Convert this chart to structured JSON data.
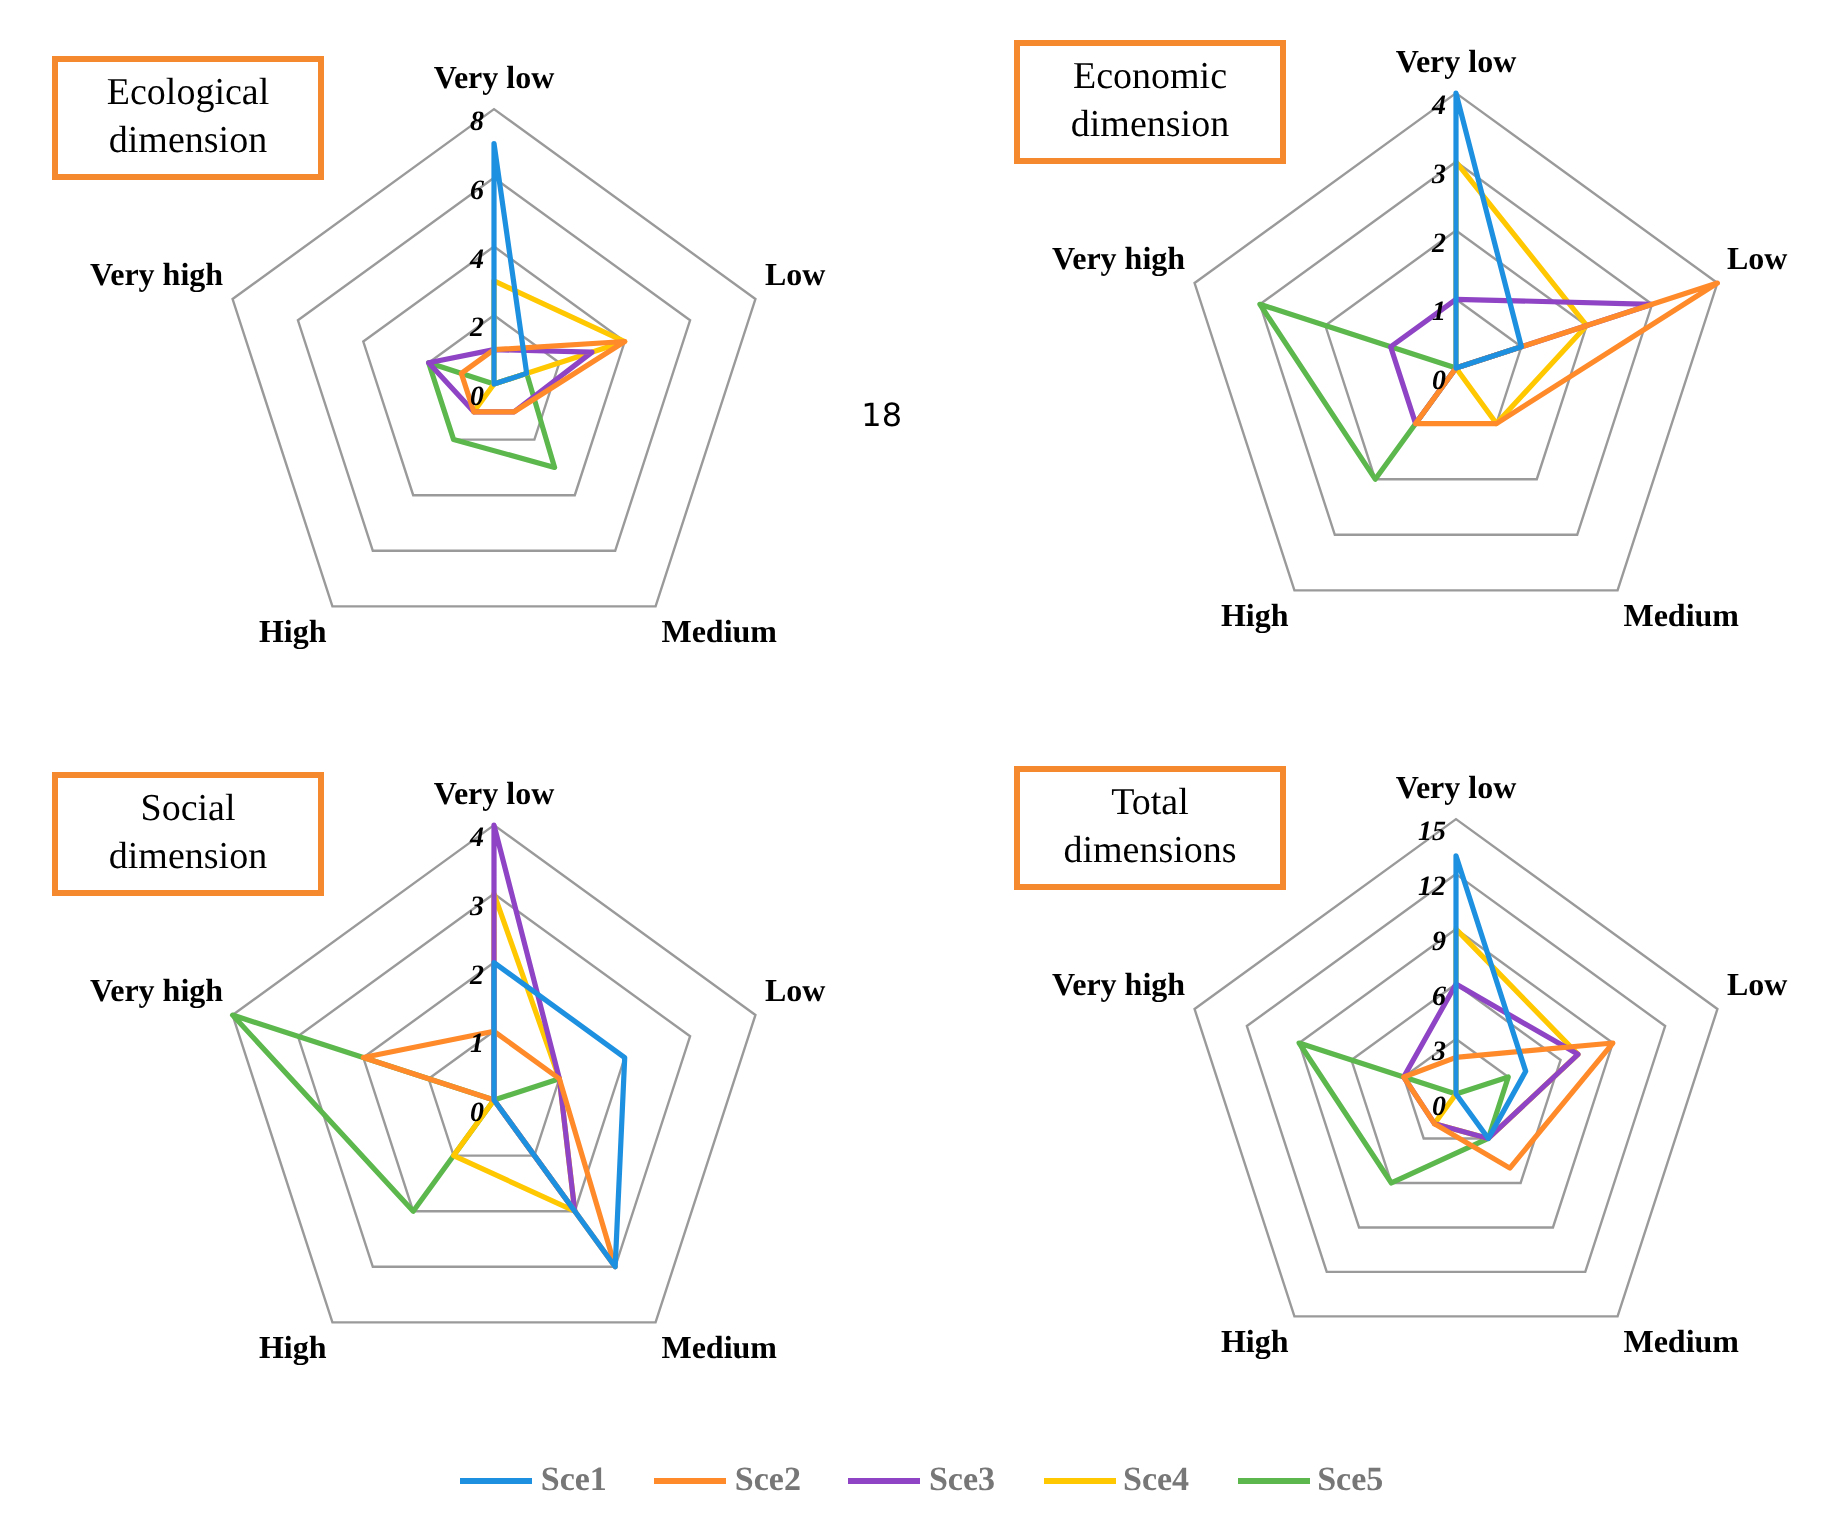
{
  "chart_data": [
    {
      "type": "radar",
      "title": "Ecological dimension",
      "categories": [
        "Very low",
        "Low",
        "Medium",
        "High",
        "Very high"
      ],
      "ylim": [
        0,
        8
      ],
      "yticks": [
        0,
        2,
        4,
        6,
        8
      ],
      "grid": true,
      "marker": "none",
      "legend": false,
      "annotations": [
        "18"
      ],
      "series": [
        {
          "color": "#1e90e0",
          "values": [
            7,
            1,
            0,
            0,
            0
          ]
        },
        {
          "color": "#ff8a2a",
          "values": [
            1,
            4,
            1,
            1,
            1
          ]
        },
        {
          "color": "#8e44c4",
          "values": [
            1,
            3,
            1,
            1,
            2
          ]
        },
        {
          "color": "#ffc800",
          "values": [
            3,
            4,
            0,
            1,
            0
          ]
        },
        {
          "color": "#5cb84c",
          "values": [
            0,
            1,
            3,
            2,
            2
          ]
        }
      ]
    },
    {
      "type": "radar",
      "title": "Economic dimension",
      "categories": [
        "Very low",
        "Low",
        "Medium",
        "High",
        "Very high"
      ],
      "ylim": [
        0,
        4
      ],
      "yticks": [
        0,
        1,
        2,
        3,
        4
      ],
      "grid": true,
      "marker": "none",
      "legend": false,
      "series": [
        {
          "color": "#1e90e0",
          "values": [
            4,
            1,
            0,
            0,
            0
          ]
        },
        {
          "color": "#ff8a2a",
          "values": [
            0,
            4,
            1,
            1,
            0
          ]
        },
        {
          "color": "#8e44c4",
          "values": [
            1,
            3,
            0,
            1,
            1
          ]
        },
        {
          "color": "#ffc800",
          "values": [
            3,
            2,
            1,
            0,
            0
          ]
        },
        {
          "color": "#5cb84c",
          "values": [
            0,
            1,
            0,
            2,
            3
          ]
        }
      ]
    },
    {
      "type": "radar",
      "title": "Social dimension",
      "categories": [
        "Very low",
        "Low",
        "Medium",
        "High",
        "Very high"
      ],
      "ylim": [
        0,
        4
      ],
      "yticks": [
        0,
        1,
        2,
        3,
        4
      ],
      "grid": true,
      "marker": "none",
      "legend": false,
      "series": [
        {
          "color": "#1e90e0",
          "values": [
            2,
            2,
            3,
            0,
            0
          ]
        },
        {
          "color": "#ff8a2a",
          "values": [
            1,
            1,
            3,
            0,
            2
          ]
        },
        {
          "color": "#8e44c4",
          "values": [
            4,
            1,
            2,
            0,
            0
          ]
        },
        {
          "color": "#ffc800",
          "values": [
            3,
            1,
            2,
            1,
            0
          ]
        },
        {
          "color": "#5cb84c",
          "values": [
            0,
            1,
            0,
            2,
            4
          ]
        }
      ]
    },
    {
      "type": "radar",
      "title": "Total dimensions",
      "categories": [
        "Very low",
        "Low",
        "Medium",
        "High",
        "Very high"
      ],
      "ylim": [
        0,
        15
      ],
      "yticks": [
        0,
        3,
        6,
        9,
        12,
        15
      ],
      "grid": true,
      "marker": "none",
      "legend": "bottom",
      "series": [
        {
          "name": "Sce1",
          "color": "#1e90e0",
          "values": [
            13,
            4,
            3,
            0,
            0
          ]
        },
        {
          "name": "Sce2",
          "color": "#ff8a2a",
          "values": [
            2,
            9,
            5,
            2,
            3
          ]
        },
        {
          "name": "Sce3",
          "color": "#8e44c4",
          "values": [
            6,
            7,
            3,
            2,
            3
          ]
        },
        {
          "name": "Sce4",
          "color": "#ffc800",
          "values": [
            9,
            7,
            3,
            2,
            0
          ]
        },
        {
          "name": "Sce5",
          "color": "#5cb84c",
          "values": [
            0,
            3,
            3,
            6,
            9
          ]
        }
      ]
    }
  ]
}
